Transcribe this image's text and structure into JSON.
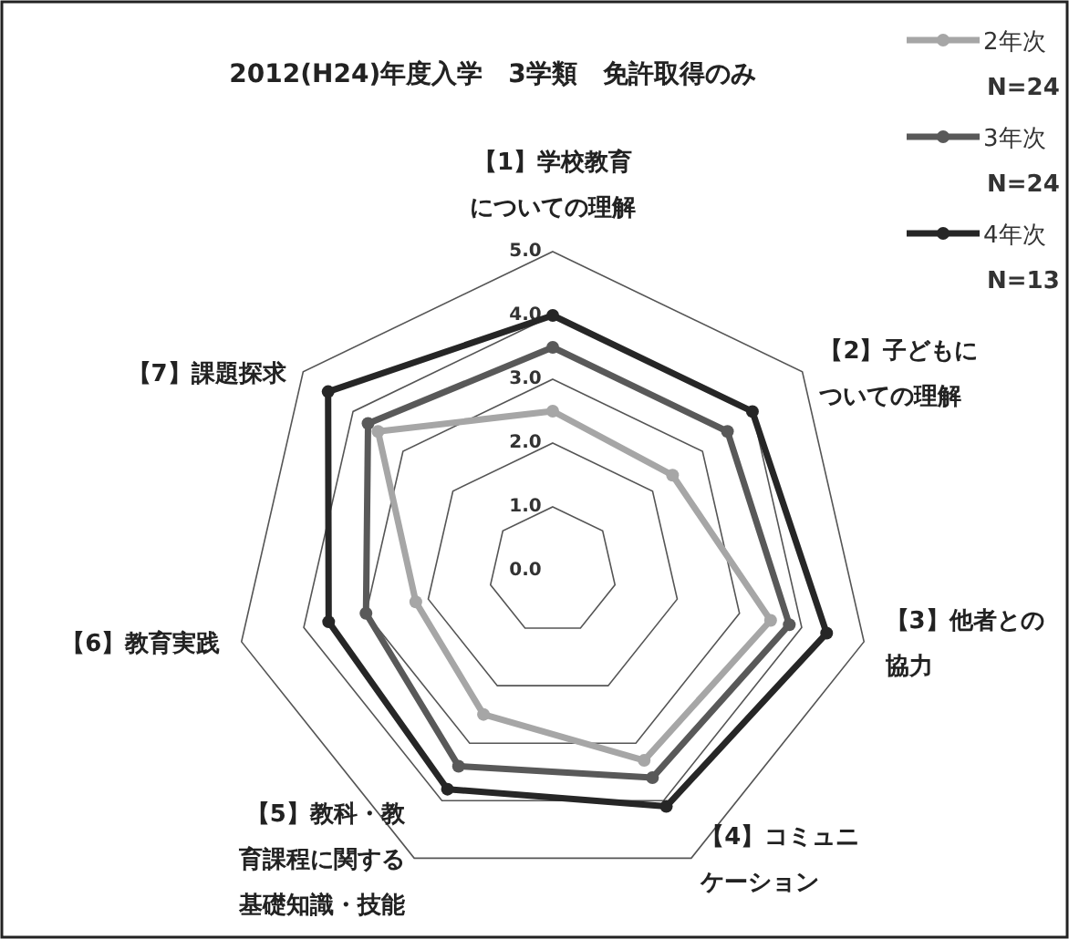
{
  "chart_data": {
    "type": "radar",
    "title": "2012(H24)年度入学　3学類　免許取得のみ",
    "categories": [
      "【1】学校教育についての理解",
      "【2】子どもについての理解",
      "【3】他者との協力",
      "【4】コミュニケーション",
      "【5】教科・教育課程に関する基礎知識・技能",
      "【6】教育実践",
      "【7】課題探求"
    ],
    "ylim": [
      0,
      5
    ],
    "yticks": [
      {
        "value": 0,
        "label": "0.0"
      },
      {
        "value": 1,
        "label": "1.0"
      },
      {
        "value": 2,
        "label": "2.0"
      },
      {
        "value": 3,
        "label": "3.0"
      },
      {
        "value": 4,
        "label": "4.0"
      },
      {
        "value": 5,
        "label": "5.0"
      }
    ],
    "grid": true,
    "legend": "top right",
    "marker": "circle",
    "series": [
      {
        "name": "2年次\nN=24",
        "color": "#a6a6a6",
        "values": [
          2.5,
          2.4,
          3.5,
          3.3,
          2.5,
          2.2,
          3.5
        ]
      },
      {
        "name": "3年次\nN=24",
        "color": "#595959",
        "values": [
          3.5,
          3.5,
          3.8,
          3.6,
          3.4,
          3.0,
          3.7
        ]
      },
      {
        "name": "4年次\nN=13",
        "color": "#262626",
        "values": [
          4.0,
          4.0,
          4.4,
          4.1,
          3.8,
          3.6,
          4.5
        ]
      }
    ]
  }
}
